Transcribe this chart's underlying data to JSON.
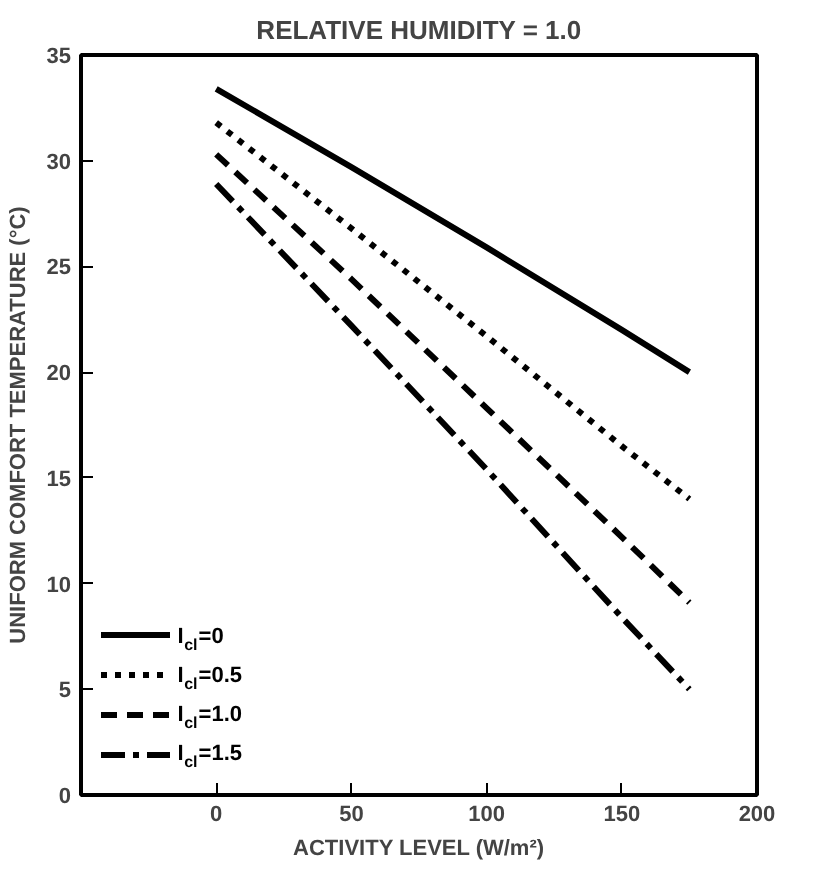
{
  "chart_data": {
    "type": "line",
    "title": "RELATIVE HUMIDITY = 1.0",
    "xlabel": "ACTIVITY LEVEL (W/m²)",
    "ylabel": "UNIFORM COMFORT TEMPERATURE (°C)",
    "x": [
      0,
      50,
      100,
      150,
      175
    ],
    "series": [
      {
        "name": "I$_{cl}$=0",
        "color": "#000000",
        "line_style": "solid",
        "values": [
          33.4,
          29.7,
          25.9,
          22.0,
          20.0
        ]
      },
      {
        "name": "I$_{cl}$=0.5",
        "color": "#000000",
        "line_style": "dotted",
        "values": [
          31.8,
          26.8,
          21.7,
          16.5,
          14.0
        ]
      },
      {
        "name": "I$_{cl}$=1.0",
        "color": "#000000",
        "line_style": "dashed",
        "values": [
          30.3,
          24.4,
          18.3,
          12.2,
          9.1
        ]
      },
      {
        "name": "I$_{cl}$=1.5",
        "color": "#000000",
        "line_style": "dashdot",
        "values": [
          28.9,
          22.2,
          15.4,
          8.4,
          5.0
        ]
      }
    ],
    "xlim": [
      -50,
      200
    ],
    "xticks": [
      0,
      50,
      100,
      150,
      200
    ],
    "ylim": [
      0,
      35
    ],
    "yticks": [
      0,
      5,
      10,
      15,
      20,
      25,
      30,
      35
    ],
    "grid": false,
    "legend": "bottom left",
    "marker": "none"
  }
}
